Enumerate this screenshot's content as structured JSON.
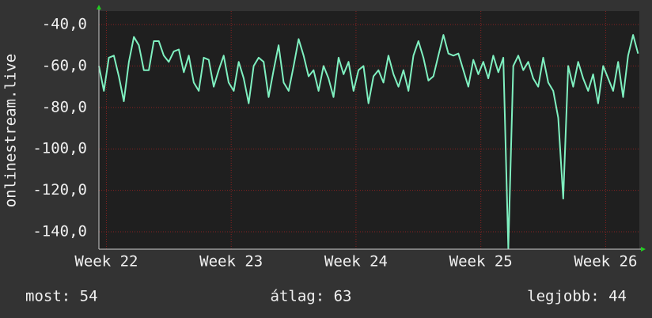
{
  "chart_data": {
    "type": "line",
    "y_label": "onlinestream.live",
    "x": [
      21.94,
      21.98,
      22.02,
      22.06,
      22.1,
      22.14,
      22.18,
      22.22,
      22.26,
      22.3,
      22.34,
      22.38,
      22.42,
      22.46,
      22.5,
      22.54,
      22.58,
      22.62,
      22.66,
      22.7,
      22.74,
      22.78,
      22.82,
      22.86,
      22.9,
      22.94,
      22.98,
      23.02,
      23.06,
      23.1,
      23.14,
      23.18,
      23.22,
      23.26,
      23.3,
      23.34,
      23.38,
      23.42,
      23.46,
      23.5,
      23.54,
      23.58,
      23.62,
      23.66,
      23.7,
      23.74,
      23.78,
      23.82,
      23.86,
      23.9,
      23.94,
      23.98,
      24.02,
      24.06,
      24.1,
      24.14,
      24.18,
      24.22,
      24.26,
      24.3,
      24.34,
      24.38,
      24.42,
      24.46,
      24.5,
      24.54,
      24.58,
      24.62,
      24.66,
      24.7,
      24.74,
      24.78,
      24.82,
      24.86,
      24.9,
      24.94,
      24.98,
      25.02,
      25.06,
      25.1,
      25.14,
      25.18,
      25.22,
      25.26,
      25.3,
      25.34,
      25.38,
      25.42,
      25.46,
      25.5,
      25.54,
      25.58,
      25.62,
      25.66,
      25.7,
      25.74,
      25.78,
      25.82,
      25.86,
      25.9,
      25.94,
      25.98,
      26.02,
      26.06,
      26.1,
      26.14,
      26.18,
      26.22,
      26.26
    ],
    "series": [
      {
        "color": "#7ff0c0",
        "values": [
          -60,
          -72,
          -56,
          -55,
          -65,
          -77,
          -58,
          -46,
          -50,
          -62,
          -62,
          -48,
          -48,
          -55,
          -58,
          -53,
          -52,
          -63,
          -55,
          -68,
          -72,
          -56,
          -57,
          -70,
          -62,
          -55,
          -68,
          -72,
          -58,
          -66,
          -78,
          -60,
          -56,
          -58,
          -75,
          -62,
          -50,
          -68,
          -72,
          -60,
          -47,
          -55,
          -65,
          -62,
          -72,
          -60,
          -66,
          -75,
          -56,
          -64,
          -58,
          -72,
          -62,
          -60,
          -78,
          -65,
          -62,
          -68,
          -55,
          -64,
          -70,
          -62,
          -72,
          -55,
          -48,
          -56,
          -67,
          -65,
          -55,
          -45,
          -54,
          -55,
          -54,
          -62,
          -70,
          -57,
          -64,
          -58,
          -66,
          -55,
          -63,
          -56,
          -148,
          -60,
          -55,
          -62,
          -58,
          -66,
          -70,
          -56,
          -68,
          -72,
          -85,
          -124,
          -60,
          -70,
          -58,
          -66,
          -72,
          -64,
          -78,
          -60,
          -66,
          -72,
          -58,
          -75,
          -55,
          -45,
          -54
        ]
      }
    ],
    "xlim": [
      21.94,
      26.27
    ],
    "xticks": [
      {
        "value": 22,
        "label": "Week 22"
      },
      {
        "value": 23,
        "label": "Week 23"
      },
      {
        "value": 24,
        "label": "Week 24"
      },
      {
        "value": 25,
        "label": "Week 25"
      },
      {
        "value": 26,
        "label": "Week 26"
      }
    ],
    "ylim": [
      -148.4,
      -33.5
    ],
    "yticks": [
      {
        "value": -140,
        "label": "-140,0"
      },
      {
        "value": -120,
        "label": "-120,0"
      },
      {
        "value": -100,
        "label": "-100,0"
      },
      {
        "value": -80,
        "label": "-80,0"
      },
      {
        "value": -60,
        "label": "-60,0"
      },
      {
        "value": -40,
        "label": "-40,0"
      }
    ],
    "grid": true,
    "stats": [
      "most: 54",
      "átlag: 63",
      "legjobb: 44"
    ]
  }
}
